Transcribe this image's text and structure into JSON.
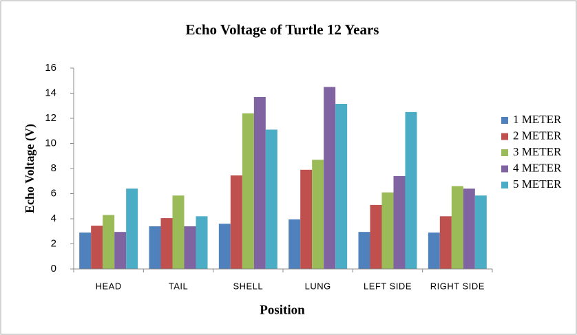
{
  "chart_data": {
    "type": "bar",
    "title": "Echo Voltage of Turtle 12 Years",
    "x_label": "Position",
    "y_label": "Echo Voltage (V)",
    "categories": [
      "HEAD",
      "TAIL",
      "SHELL",
      "LUNG",
      "LEFT SIDE",
      "RIGHT SIDE"
    ],
    "series": [
      {
        "name": "1 METER",
        "color": "#4f81bd",
        "values": [
          2.9,
          3.4,
          3.6,
          3.95,
          2.95,
          2.9
        ]
      },
      {
        "name": "2 METER",
        "color": "#c0504d",
        "values": [
          3.45,
          4.05,
          7.45,
          7.9,
          5.1,
          4.2
        ]
      },
      {
        "name": "3 METER",
        "color": "#9bbb59",
        "values": [
          4.3,
          5.85,
          12.4,
          8.7,
          6.1,
          6.6
        ]
      },
      {
        "name": "4 METER",
        "color": "#8064a2",
        "values": [
          2.95,
          3.4,
          13.7,
          14.5,
          7.4,
          6.4
        ]
      },
      {
        "name": "5 METER",
        "color": "#4bacc6",
        "values": [
          6.4,
          4.2,
          11.1,
          13.15,
          12.5,
          5.85
        ]
      }
    ],
    "ylim": [
      0,
      16
    ],
    "yticks": [
      0,
      2,
      4,
      6,
      8,
      10,
      12,
      14,
      16
    ],
    "grid": false,
    "legend": "right"
  }
}
